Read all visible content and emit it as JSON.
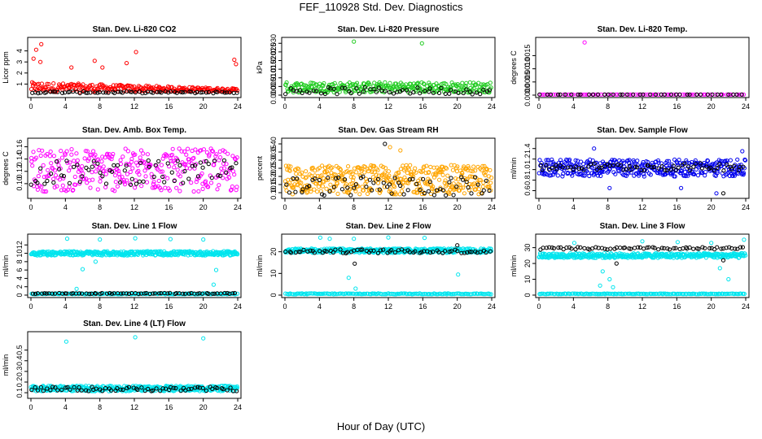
{
  "figure": {
    "title": "FEF_110928  Std. Dev. Diagnostics",
    "xlabel": "Hour of Day (UTC)"
  },
  "chart_data": [
    {
      "type": "scatter",
      "title": "Stan. Dev. Li-820 CO2",
      "ylabel": "Licor ppm",
      "xlim": [
        0,
        24
      ],
      "xticks": [
        0,
        4,
        8,
        12,
        16,
        20,
        24
      ],
      "ylim": [
        0,
        5
      ],
      "yticks": [
        1,
        2,
        3,
        4
      ],
      "series": [
        {
          "color": "#ff0000",
          "band": {
            "mean": 0.6,
            "spread": 0.45,
            "decay": 0.7
          },
          "n": 260,
          "outliers": [
            [
              1.2,
              4.6
            ],
            [
              0.6,
              4.1
            ],
            [
              0.3,
              3.3
            ],
            [
              1.1,
              3.0
            ],
            [
              7.4,
              3.1
            ],
            [
              12.2,
              3.9
            ],
            [
              11.1,
              2.9
            ],
            [
              8.3,
              2.5
            ],
            [
              23.6,
              3.2
            ],
            [
              23.8,
              2.8
            ],
            [
              4.7,
              2.5
            ]
          ]
        },
        {
          "color": "#000000",
          "band": {
            "mean": 0.25,
            "spread": 0.08,
            "decay": 0
          },
          "n": 70,
          "outliers": []
        }
      ]
    },
    {
      "type": "scatter",
      "title": "Stan. Dev. Li-820 Pressure",
      "ylabel": "kPa",
      "xlim": [
        0,
        24
      ],
      "xticks": [
        0,
        4,
        8,
        12,
        16,
        20,
        24
      ],
      "ylim": [
        0,
        0.032
      ],
      "yticks": [
        0.0,
        0.005,
        0.01,
        0.015,
        0.02,
        0.025,
        0.03
      ],
      "series": [
        {
          "color": "#22cc22",
          "band": {
            "mean": 0.0045,
            "spread": 0.003,
            "decay": 0
          },
          "n": 300,
          "outliers": [
            [
              8.0,
              0.031
            ],
            [
              15.9,
              0.03
            ]
          ]
        },
        {
          "color": "#000000",
          "band": {
            "mean": 0.0025,
            "spread": 0.002,
            "decay": 0
          },
          "n": 60,
          "outliers": []
        }
      ]
    },
    {
      "type": "scatter",
      "title": "Stan. Dev. Li-820 Temp.",
      "ylabel": "degrees C",
      "xlim": [
        0,
        24
      ],
      "xticks": [
        0,
        4,
        8,
        12,
        16,
        20,
        24
      ],
      "ylim": [
        0,
        0.0021
      ],
      "yticks": [
        0.0,
        0.0005,
        0.001,
        0.0015
      ],
      "series": [
        {
          "color": "#ff00ff",
          "band": {
            "mean": 0.0,
            "spread": 0.0,
            "decay": 0
          },
          "n": 80,
          "outliers": [
            [
              5.3,
              0.002
            ]
          ]
        },
        {
          "color": "#000000",
          "band": {
            "mean": 0.0,
            "spread": 0.0,
            "decay": 0
          },
          "n": 40,
          "outliers": []
        }
      ]
    },
    {
      "type": "scatter",
      "title": "Stan. Dev. Amb. Box Temp.",
      "ylabel": "degrees C",
      "xlim": [
        0,
        24
      ],
      "xticks": [
        0,
        4,
        8,
        12,
        16,
        20,
        24
      ],
      "ylim": [
        0.08,
        0.17
      ],
      "yticks": [
        0.1,
        0.12,
        0.14,
        0.16
      ],
      "series": [
        {
          "color": "#ff00ff",
          "band": {
            "mean": 0.122,
            "spread": 0.035,
            "decay": 0
          },
          "n": 320,
          "outliers": []
        },
        {
          "color": "#000000",
          "band": {
            "mean": 0.118,
            "spread": 0.02,
            "decay": 0
          },
          "n": 70,
          "outliers": []
        }
      ]
    },
    {
      "type": "scatter",
      "title": "Stan. Dev. Gas Stream RH",
      "ylabel": "percent",
      "xlim": [
        0,
        24
      ],
      "xticks": [
        0,
        4,
        8,
        12,
        16,
        20,
        24
      ],
      "ylim": [
        0.08,
        0.42
      ],
      "yticks": [
        0.1,
        0.15,
        0.2,
        0.25,
        0.3,
        0.35,
        0.4
      ],
      "series": [
        {
          "color": "#ffa500",
          "band": {
            "mean": 0.18,
            "spread": 0.09,
            "decay": 0
          },
          "n": 420,
          "outliers": [
            [
              12.2,
              0.38
            ],
            [
              13.4,
              0.36
            ]
          ]
        },
        {
          "color": "#000000",
          "band": {
            "mean": 0.14,
            "spread": 0.06,
            "decay": 0
          },
          "n": 70,
          "outliers": [
            [
              11.6,
              0.4
            ]
          ]
        }
      ]
    },
    {
      "type": "scatter",
      "title": "Stan. Dev. Sample Flow",
      "ylabel": "ml/min",
      "xlim": [
        0,
        24
      ],
      "xticks": [
        0,
        4,
        8,
        12,
        16,
        20,
        24
      ],
      "ylim": [
        0.5,
        1.55
      ],
      "yticks": [
        0.6,
        0.8,
        1.0,
        1.2,
        1.4
      ],
      "series": [
        {
          "color": "#0000ee",
          "band": {
            "mean": 1.03,
            "spread": 0.16,
            "decay": 0
          },
          "n": 380,
          "outliers": [
            [
              8.2,
              0.65
            ],
            [
              16.5,
              0.65
            ],
            [
              20.6,
              0.55
            ],
            [
              6.4,
              1.4
            ],
            [
              23.6,
              1.35
            ]
          ]
        },
        {
          "color": "#000000",
          "band": {
            "mean": 1.05,
            "spread": 0.07,
            "decay": 0
          },
          "n": 70,
          "outliers": [
            [
              21.4,
              0.55
            ]
          ]
        }
      ]
    },
    {
      "type": "scatter",
      "title": "Stan. Dev. Line 1 Flow",
      "ylabel": "ml/min",
      "xlim": [
        0,
        24
      ],
      "xticks": [
        0,
        4,
        8,
        12,
        16,
        20,
        24
      ],
      "ylim": [
        0,
        14
      ],
      "yticks": [
        0,
        2,
        4,
        6,
        8,
        10,
        12
      ],
      "series": [
        {
          "color": "#00e5ee",
          "band": {
            "mean": 10.0,
            "spread": 0.5,
            "decay": 0
          },
          "n": 400,
          "outliers": [
            [
              4.2,
              13.5
            ],
            [
              8.0,
              13.3
            ],
            [
              12.1,
              13.6
            ],
            [
              16.2,
              13.4
            ],
            [
              20.0,
              13.3
            ],
            [
              6.0,
              6.2
            ],
            [
              7.5,
              8.0
            ],
            [
              21.5,
              6.0
            ],
            [
              21.2,
              2.5
            ],
            [
              5.3,
              1.5
            ]
          ]
        },
        {
          "color": "#00e5ee",
          "band": {
            "mean": 0.3,
            "spread": 0.1,
            "decay": 0
          },
          "n": 160,
          "outliers": []
        },
        {
          "color": "#000000",
          "band": {
            "mean": 0.4,
            "spread": 0.1,
            "decay": 0
          },
          "n": 70,
          "outliers": []
        }
      ]
    },
    {
      "type": "scatter",
      "title": "Stan. Dev. Line 2 Flow",
      "ylabel": "ml/min",
      "xlim": [
        0,
        24
      ],
      "xticks": [
        0,
        4,
        8,
        12,
        16,
        20,
        24
      ],
      "ylim": [
        0,
        27
      ],
      "yticks": [
        0,
        10,
        20
      ],
      "series": [
        {
          "color": "#00e5ee",
          "band": {
            "mean": 20.5,
            "spread": 1.0,
            "decay": 0
          },
          "n": 400,
          "outliers": [
            [
              4.1,
              26.5
            ],
            [
              8.0,
              26.0
            ],
            [
              12.0,
              26.6
            ],
            [
              16.2,
              26.4
            ],
            [
              20.1,
              9.5
            ],
            [
              7.4,
              8.0
            ],
            [
              8.2,
              3.0
            ],
            [
              5.2,
              26.0
            ]
          ]
        },
        {
          "color": "#00e5ee",
          "band": {
            "mean": 0.6,
            "spread": 0.2,
            "decay": 0
          },
          "n": 160,
          "outliers": []
        },
        {
          "color": "#000000",
          "band": {
            "mean": 20.2,
            "spread": 0.9,
            "decay": 0
          },
          "n": 70,
          "outliers": [
            [
              8.1,
              14.5
            ],
            [
              20.0,
              23.0
            ]
          ]
        }
      ]
    },
    {
      "type": "scatter",
      "title": "Stan. Dev. Line 3 Flow",
      "ylabel": "ml/min",
      "xlim": [
        0,
        24
      ],
      "xticks": [
        0,
        4,
        8,
        12,
        16,
        20,
        24
      ],
      "ylim": [
        0,
        37
      ],
      "yticks": [
        0,
        10,
        20,
        30
      ],
      "series": [
        {
          "color": "#00e5ee",
          "band": {
            "mean": 25.0,
            "spread": 1.5,
            "decay": 0
          },
          "n": 400,
          "outliers": [
            [
              4.1,
              33.0
            ],
            [
              12.0,
              34.0
            ],
            [
              16.1,
              33.5
            ],
            [
              20.0,
              33.0
            ],
            [
              7.4,
              15.0
            ],
            [
              8.2,
              10.0
            ],
            [
              7.1,
              6.0
            ],
            [
              21.0,
              17.0
            ],
            [
              22.0,
              10.0
            ],
            [
              8.6,
              5.0
            ],
            [
              23.8,
              35.0
            ]
          ]
        },
        {
          "color": "#00e5ee",
          "band": {
            "mean": 0.8,
            "spread": 0.2,
            "decay": 0
          },
          "n": 160,
          "outliers": []
        },
        {
          "color": "#000000",
          "band": {
            "mean": 29.5,
            "spread": 0.8,
            "decay": 0
          },
          "n": 70,
          "outliers": [
            [
              9.0,
              20.0
            ],
            [
              21.4,
              22.0
            ]
          ]
        }
      ]
    },
    {
      "type": "scatter",
      "title": "Stan. Dev. Line 4 (LT) Flow",
      "ylabel": "ml/min",
      "xlim": [
        0,
        24
      ],
      "xticks": [
        0,
        4,
        8,
        12,
        16,
        20,
        24
      ],
      "ylim": [
        0.07,
        0.65
      ],
      "yticks": [
        0.1,
        0.2,
        0.3,
        0.4,
        0.5
      ],
      "series": [
        {
          "color": "#00e5ee",
          "band": {
            "mean": 0.14,
            "spread": 0.025,
            "decay": 0
          },
          "n": 380,
          "outliers": [
            [
              4.1,
              0.58
            ],
            [
              12.1,
              0.62
            ],
            [
              20.0,
              0.61
            ]
          ]
        },
        {
          "color": "#000000",
          "band": {
            "mean": 0.135,
            "spread": 0.02,
            "decay": 0
          },
          "n": 70,
          "outliers": []
        }
      ]
    }
  ]
}
